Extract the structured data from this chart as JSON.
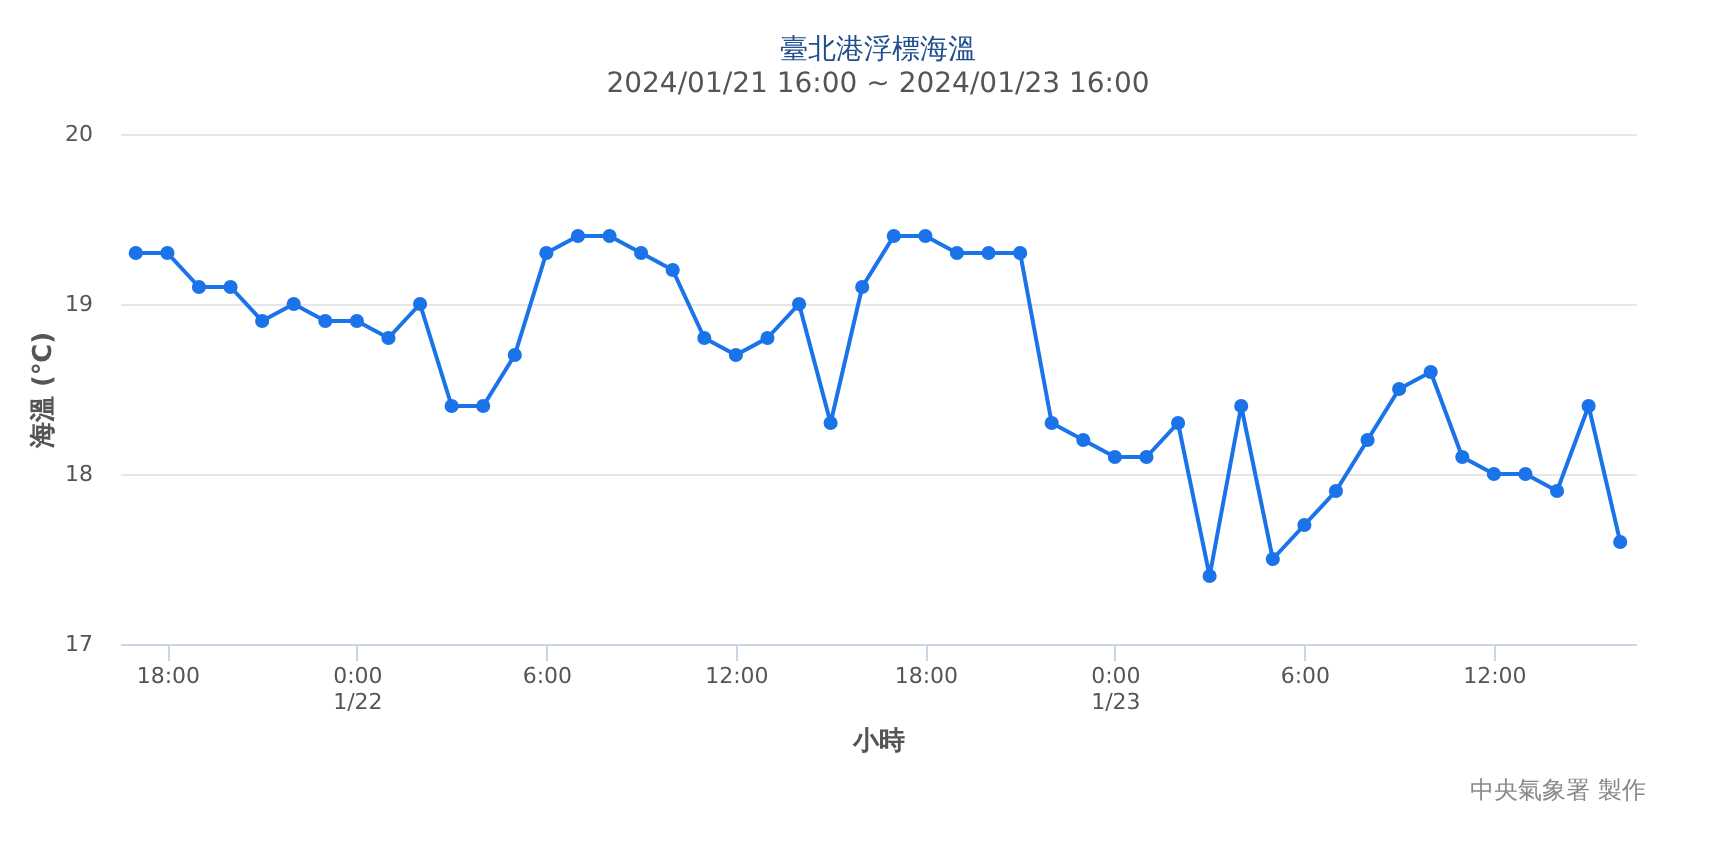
{
  "chart_data": {
    "type": "line",
    "title": "臺北港浮標海溫",
    "subtitle": "2024/01/21 16:00 ~ 2024/01/23 16:00",
    "xlabel": "小時",
    "ylabel": "海溫 (℃)",
    "x": [
      "2024-01-21T17:00",
      "2024-01-21T18:00",
      "2024-01-21T19:00",
      "2024-01-21T20:00",
      "2024-01-21T21:00",
      "2024-01-21T22:00",
      "2024-01-21T23:00",
      "2024-01-22T00:00",
      "2024-01-22T01:00",
      "2024-01-22T02:00",
      "2024-01-22T03:00",
      "2024-01-22T04:00",
      "2024-01-22T05:00",
      "2024-01-22T06:00",
      "2024-01-22T07:00",
      "2024-01-22T08:00",
      "2024-01-22T09:00",
      "2024-01-22T10:00",
      "2024-01-22T11:00",
      "2024-01-22T12:00",
      "2024-01-22T13:00",
      "2024-01-22T14:00",
      "2024-01-22T15:00",
      "2024-01-22T16:00",
      "2024-01-22T17:00",
      "2024-01-22T18:00",
      "2024-01-22T19:00",
      "2024-01-22T20:00",
      "2024-01-22T21:00",
      "2024-01-22T22:00",
      "2024-01-22T23:00",
      "2024-01-23T00:00",
      "2024-01-23T01:00",
      "2024-01-23T02:00",
      "2024-01-23T03:00",
      "2024-01-23T04:00",
      "2024-01-23T05:00",
      "2024-01-23T06:00",
      "2024-01-23T07:00",
      "2024-01-23T08:00",
      "2024-01-23T09:00",
      "2024-01-23T10:00",
      "2024-01-23T11:00",
      "2024-01-23T12:00",
      "2024-01-23T13:00",
      "2024-01-23T14:00",
      "2024-01-23T15:00",
      "2024-01-23T16:00"
    ],
    "series": [
      {
        "color": "#1a73e8",
        "values": [
          19.3,
          19.3,
          19.1,
          19.1,
          18.9,
          19.0,
          18.9,
          18.9,
          18.8,
          19.0,
          18.4,
          18.4,
          18.7,
          19.3,
          19.4,
          19.4,
          19.3,
          19.2,
          18.8,
          18.7,
          18.8,
          19.0,
          18.3,
          19.1,
          19.4,
          19.4,
          19.3,
          19.3,
          19.3,
          18.3,
          18.2,
          18.1,
          18.1,
          18.3,
          17.4,
          18.4,
          17.5,
          17.7,
          17.9,
          18.2,
          18.5,
          18.6,
          18.1,
          18.0,
          18.0,
          17.9,
          18.4,
          17.6
        ]
      }
    ],
    "xlim": [
      "2024-01-21T16:30",
      "2024-01-23T16:30"
    ],
    "xticks": [
      {
        "value": "2024-01-21T18:00",
        "label": "18:00"
      },
      {
        "value": "2024-01-22T00:00",
        "label": "0:00\n1/22"
      },
      {
        "value": "2024-01-22T06:00",
        "label": "6:00"
      },
      {
        "value": "2024-01-22T12:00",
        "label": "12:00"
      },
      {
        "value": "2024-01-22T18:00",
        "label": "18:00"
      },
      {
        "value": "2024-01-23T00:00",
        "label": "0:00\n1/23"
      },
      {
        "value": "2024-01-23T06:00",
        "label": "6:00"
      },
      {
        "value": "2024-01-23T12:00",
        "label": "12:00"
      }
    ],
    "ylim": [
      17,
      20
    ],
    "yticks": [
      17,
      18,
      19,
      20
    ],
    "grid": "y",
    "marker": "circle",
    "line_style": "solid",
    "annotations": [
      "中央氣象署 製作"
    ]
  }
}
